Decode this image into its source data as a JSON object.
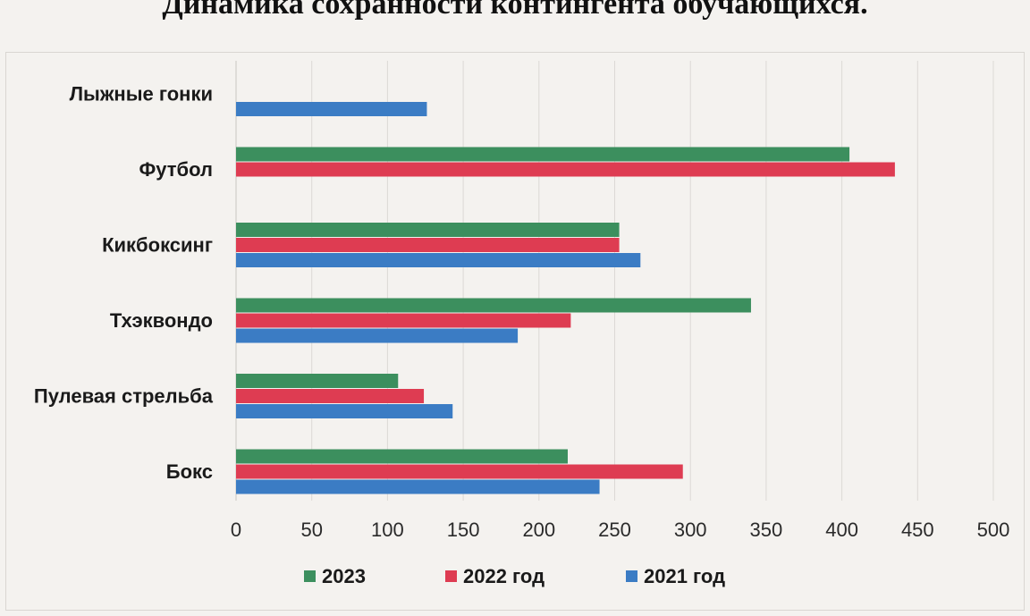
{
  "chart_data": {
    "type": "bar",
    "orientation": "horizontal",
    "title": "Динамика сохранности контингента обучающихся.",
    "categories": [
      "Лыжные гонки",
      "Футбол",
      "Кикбоксинг",
      "Тхэквондо",
      "Пулевая стрельба",
      "Бокс"
    ],
    "series": [
      {
        "name": "2023",
        "color": "#3c8f5e",
        "values": [
          null,
          405,
          253,
          340,
          107,
          219
        ]
      },
      {
        "name": "2022 год",
        "color": "#de3c52",
        "values": [
          null,
          435,
          253,
          221,
          124,
          295
        ]
      },
      {
        "name": "2021 год",
        "color": "#3b7cc4",
        "values": [
          126,
          null,
          267,
          186,
          143,
          240
        ]
      }
    ],
    "x_ticks": [
      "0",
      "50",
      "100",
      "150",
      "200",
      "250",
      "300",
      "350",
      "400",
      "450",
      "500"
    ],
    "xlim": [
      0,
      500
    ],
    "grid": true,
    "legend_position": "bottom"
  }
}
